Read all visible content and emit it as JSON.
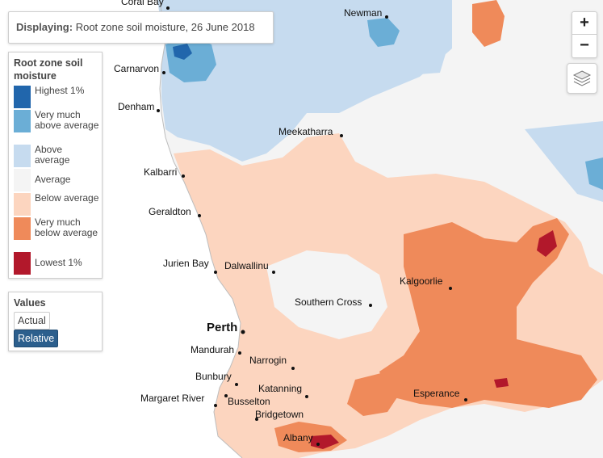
{
  "display": {
    "label": "Displaying:",
    "value": "Root zone soil moisture, 26 June 2018"
  },
  "legend": {
    "title": "Root zone soil moisture",
    "items": [
      {
        "label": "Highest 1%",
        "color": "#2166ac"
      },
      {
        "label": "Very much above average",
        "color": "#6baed6"
      },
      {
        "label": "Above average",
        "color": "#c6dbef"
      },
      {
        "label": "Average",
        "color": "#f4f4f4"
      },
      {
        "label": "Below average",
        "color": "#fcd5bf"
      },
      {
        "label": "Very much below average",
        "color": "#ef8a5a"
      },
      {
        "label": "Lowest 1%",
        "color": "#b2182b"
      }
    ]
  },
  "values": {
    "title": "Values",
    "actual": "Actual",
    "relative": "Relative",
    "selected": "Relative"
  },
  "zoom": {
    "in": "+",
    "out": "−"
  },
  "towns": [
    {
      "name": "Coral Bay"
    },
    {
      "name": "Newman"
    },
    {
      "name": "Carnarvon"
    },
    {
      "name": "Denham"
    },
    {
      "name": "Meekatharra"
    },
    {
      "name": "Kalbarri"
    },
    {
      "name": "Geraldton"
    },
    {
      "name": "Jurien Bay"
    },
    {
      "name": "Dalwallinu"
    },
    {
      "name": "Kalgoorlie"
    },
    {
      "name": "Southern Cross"
    },
    {
      "name": "Perth"
    },
    {
      "name": "Mandurah"
    },
    {
      "name": "Narrogin"
    },
    {
      "name": "Bunbury"
    },
    {
      "name": "Katanning"
    },
    {
      "name": "Margaret River"
    },
    {
      "name": "Busselton"
    },
    {
      "name": "Esperance"
    },
    {
      "name": "Bridgetown"
    },
    {
      "name": "Albany"
    }
  ]
}
